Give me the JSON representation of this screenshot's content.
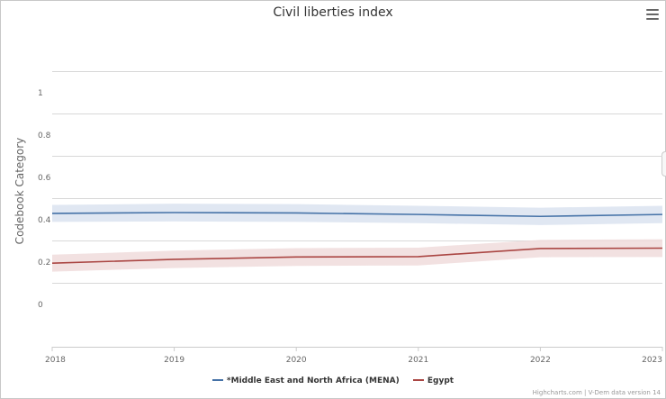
{
  "chart_data": {
    "type": "line",
    "title": "Civil liberties index",
    "ylabel": "Codebook Category",
    "xlabel": "",
    "x": [
      2018,
      2019,
      2020,
      2021,
      2022,
      2023
    ],
    "ylim": [
      -0.2,
      1.2
    ],
    "y_ticks": [
      0,
      0.2,
      0.4,
      0.6,
      0.8,
      1
    ],
    "grid": true,
    "legend_position": "bottom",
    "series": [
      {
        "name": "*Middle East and North Africa (MENA)",
        "color": "#4572A7",
        "band_color": "#dbe3f0",
        "values": [
          0.43,
          0.434,
          0.432,
          0.425,
          0.416,
          0.425
        ],
        "lower": [
          0.39,
          0.392,
          0.39,
          0.384,
          0.375,
          0.384
        ],
        "upper": [
          0.47,
          0.476,
          0.474,
          0.466,
          0.457,
          0.466
        ]
      },
      {
        "name": "Egypt",
        "color": "#AA4643",
        "band_color": "#f0dcdc",
        "values": [
          0.195,
          0.213,
          0.224,
          0.226,
          0.264,
          0.266
        ],
        "lower": [
          0.155,
          0.172,
          0.182,
          0.184,
          0.223,
          0.224
        ],
        "upper": [
          0.235,
          0.254,
          0.266,
          0.268,
          0.305,
          0.308
        ]
      }
    ]
  },
  "credits": "Highcharts.com | V-Dem data version 14"
}
